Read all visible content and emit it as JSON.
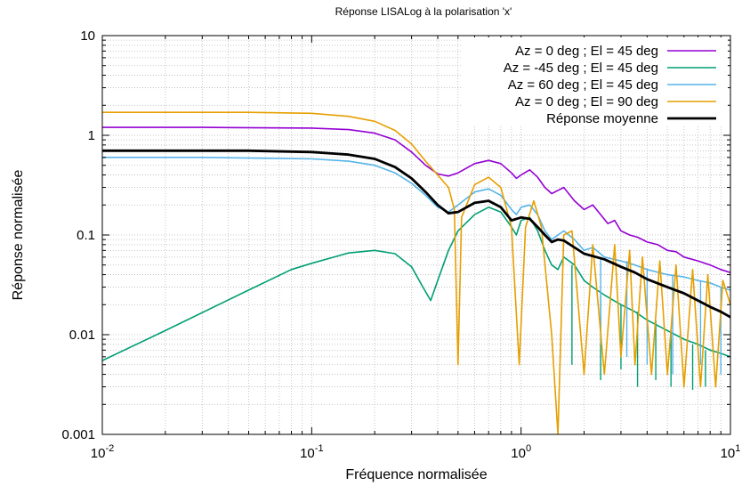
{
  "chart_data": {
    "type": "line",
    "title": "Réponse LISALog à la polarisation 'x'",
    "xlabel": "Fréquence normalisée",
    "ylabel": "Réponse normalisée",
    "xscale": "log",
    "yscale": "log",
    "xlim": [
      0.01,
      10
    ],
    "ylim": [
      0.001,
      10
    ],
    "grid": "on (major and minor, dotted)",
    "legend_position": "top-right",
    "x_ticks": [
      {
        "value": 0.01,
        "base": "10",
        "exp": "-2"
      },
      {
        "value": 0.1,
        "base": "10",
        "exp": "-1"
      },
      {
        "value": 1,
        "base": "10",
        "exp": "0"
      },
      {
        "value": 10,
        "base": "10",
        "exp": "1"
      }
    ],
    "y_ticks": [
      {
        "value": 0.001,
        "label": "0.001"
      },
      {
        "value": 0.01,
        "label": "0.01"
      },
      {
        "value": 0.1,
        "label": "0.1"
      },
      {
        "value": 1,
        "label": "1"
      },
      {
        "value": 10,
        "label": "10"
      }
    ],
    "series": [
      {
        "name": "Az = 0 deg ; El = 45 deg",
        "color": "#9400d3",
        "width": 1.6,
        "points": [
          [
            0.01,
            1.2
          ],
          [
            0.03,
            1.2
          ],
          [
            0.1,
            1.18
          ],
          [
            0.15,
            1.14
          ],
          [
            0.2,
            1.05
          ],
          [
            0.25,
            0.9
          ],
          [
            0.3,
            0.68
          ],
          [
            0.35,
            0.5
          ],
          [
            0.4,
            0.41
          ],
          [
            0.45,
            0.39
          ],
          [
            0.5,
            0.42
          ],
          [
            0.6,
            0.52
          ],
          [
            0.7,
            0.56
          ],
          [
            0.8,
            0.52
          ],
          [
            0.9,
            0.42
          ],
          [
            0.95,
            0.37
          ],
          [
            1.0,
            0.4
          ],
          [
            1.1,
            0.45
          ],
          [
            1.2,
            0.38
          ],
          [
            1.3,
            0.3
          ],
          [
            1.4,
            0.26
          ],
          [
            1.5,
            0.28
          ],
          [
            1.6,
            0.3
          ],
          [
            1.8,
            0.22
          ],
          [
            2.0,
            0.18
          ],
          [
            2.2,
            0.2
          ],
          [
            2.4,
            0.16
          ],
          [
            2.6,
            0.13
          ],
          [
            2.8,
            0.14
          ],
          [
            3.0,
            0.11
          ],
          [
            3.3,
            0.1
          ],
          [
            3.6,
            0.095
          ],
          [
            4.0,
            0.085
          ],
          [
            4.5,
            0.08
          ],
          [
            5.0,
            0.07
          ],
          [
            5.5,
            0.068
          ],
          [
            6.0,
            0.06
          ],
          [
            7.0,
            0.055
          ],
          [
            8.0,
            0.05
          ],
          [
            9.0,
            0.045
          ],
          [
            10,
            0.042
          ]
        ]
      },
      {
        "name": "Az = -45 deg ; El = 45 deg",
        "color": "#009e73",
        "width": 1.6,
        "points": [
          [
            0.01,
            0.0055
          ],
          [
            0.02,
            0.011
          ],
          [
            0.05,
            0.028
          ],
          [
            0.08,
            0.045
          ],
          [
            0.1,
            0.052
          ],
          [
            0.15,
            0.066
          ],
          [
            0.2,
            0.07
          ],
          [
            0.25,
            0.065
          ],
          [
            0.3,
            0.048
          ],
          [
            0.34,
            0.03
          ],
          [
            0.37,
            0.022
          ],
          [
            0.4,
            0.035
          ],
          [
            0.45,
            0.07
          ],
          [
            0.5,
            0.11
          ],
          [
            0.6,
            0.16
          ],
          [
            0.7,
            0.19
          ],
          [
            0.8,
            0.17
          ],
          [
            0.9,
            0.12
          ],
          [
            0.95,
            0.1
          ],
          [
            1.0,
            0.14
          ],
          [
            1.1,
            0.15
          ],
          [
            1.2,
            0.11
          ],
          [
            1.3,
            0.07
          ],
          [
            1.4,
            0.05
          ],
          [
            1.5,
            0.045
          ],
          [
            1.6,
            0.06
          ],
          [
            1.8,
            0.05
          ],
          [
            2.0,
            0.035
          ],
          [
            2.2,
            0.03
          ],
          [
            2.5,
            0.025
          ],
          [
            3.0,
            0.02
          ],
          [
            3.5,
            0.017
          ],
          [
            4.0,
            0.014
          ],
          [
            5.0,
            0.011
          ],
          [
            6.0,
            0.009
          ],
          [
            7.0,
            0.008
          ],
          [
            8.0,
            0.007
          ],
          [
            9.0,
            0.0065
          ],
          [
            10,
            0.006
          ]
        ],
        "dips": [
          [
            1.75,
            0.005
          ],
          [
            2.4,
            0.0035
          ],
          [
            3.0,
            0.0045
          ],
          [
            3.6,
            0.003
          ],
          [
            4.4,
            0.0035
          ],
          [
            5.2,
            0.003
          ],
          [
            6.6,
            0.0028
          ],
          [
            7.6,
            0.003
          ]
        ]
      },
      {
        "name": "Az = 60 deg ; El = 45 deg",
        "color": "#56b4e9",
        "width": 1.6,
        "points": [
          [
            0.01,
            0.6
          ],
          [
            0.03,
            0.6
          ],
          [
            0.1,
            0.58
          ],
          [
            0.15,
            0.55
          ],
          [
            0.2,
            0.5
          ],
          [
            0.25,
            0.42
          ],
          [
            0.3,
            0.33
          ],
          [
            0.35,
            0.25
          ],
          [
            0.4,
            0.19
          ],
          [
            0.45,
            0.17
          ],
          [
            0.5,
            0.2
          ],
          [
            0.6,
            0.27
          ],
          [
            0.7,
            0.29
          ],
          [
            0.8,
            0.25
          ],
          [
            0.9,
            0.18
          ],
          [
            0.95,
            0.16
          ],
          [
            1.0,
            0.19
          ],
          [
            1.1,
            0.2
          ],
          [
            1.2,
            0.16
          ],
          [
            1.3,
            0.11
          ],
          [
            1.4,
            0.09
          ],
          [
            1.5,
            0.1
          ],
          [
            1.6,
            0.11
          ],
          [
            1.8,
            0.09
          ],
          [
            2.0,
            0.07
          ],
          [
            2.2,
            0.075
          ],
          [
            2.5,
            0.06
          ],
          [
            3.0,
            0.055
          ],
          [
            3.5,
            0.05
          ],
          [
            4.0,
            0.045
          ],
          [
            5.0,
            0.04
          ],
          [
            6.0,
            0.038
          ],
          [
            7.0,
            0.035
          ],
          [
            8.0,
            0.033
          ],
          [
            9.0,
            0.03
          ],
          [
            10,
            0.028
          ]
        ],
        "dips": [
          [
            2.4,
            0.008
          ],
          [
            3.2,
            0.006
          ],
          [
            4.0,
            0.005
          ],
          [
            5.3,
            0.004
          ],
          [
            7.2,
            0.005
          ],
          [
            9.0,
            0.004
          ]
        ]
      },
      {
        "name": "Az = 0 deg ; El = 90 deg",
        "color": "#e69f00",
        "width": 1.6,
        "points": [
          [
            0.01,
            1.7
          ],
          [
            0.05,
            1.7
          ],
          [
            0.1,
            1.66
          ],
          [
            0.15,
            1.55
          ],
          [
            0.2,
            1.38
          ],
          [
            0.25,
            1.12
          ],
          [
            0.3,
            0.82
          ],
          [
            0.35,
            0.55
          ],
          [
            0.4,
            0.4
          ],
          [
            0.45,
            0.3
          ],
          [
            0.48,
            0.18
          ],
          [
            0.5,
            0.005
          ],
          [
            0.52,
            0.15
          ],
          [
            0.6,
            0.32
          ],
          [
            0.7,
            0.38
          ],
          [
            0.8,
            0.3
          ],
          [
            0.9,
            0.12
          ],
          [
            0.98,
            0.005
          ],
          [
            1.05,
            0.12
          ],
          [
            1.15,
            0.22
          ],
          [
            1.25,
            0.12
          ],
          [
            1.4,
            0.01
          ],
          [
            1.5,
            0.001
          ],
          [
            1.6,
            0.1
          ],
          [
            1.75,
            0.11
          ],
          [
            2.0,
            0.004
          ],
          [
            2.2,
            0.08
          ],
          [
            2.5,
            0.004
          ],
          [
            2.8,
            0.08
          ],
          [
            3.0,
            0.006
          ],
          [
            3.3,
            0.07
          ],
          [
            3.5,
            0.005
          ],
          [
            3.8,
            0.06
          ],
          [
            4.2,
            0.004
          ],
          [
            4.6,
            0.055
          ],
          [
            5.0,
            0.004
          ],
          [
            5.5,
            0.05
          ],
          [
            6.0,
            0.003
          ],
          [
            6.6,
            0.045
          ],
          [
            7.2,
            0.003
          ],
          [
            7.8,
            0.04
          ],
          [
            8.5,
            0.003
          ],
          [
            9.2,
            0.035
          ],
          [
            10,
            0.02
          ]
        ]
      },
      {
        "name": "Réponse moyenne",
        "color": "#000000",
        "width": 2.8,
        "points": [
          [
            0.01,
            0.7
          ],
          [
            0.05,
            0.7
          ],
          [
            0.1,
            0.68
          ],
          [
            0.15,
            0.64
          ],
          [
            0.2,
            0.58
          ],
          [
            0.25,
            0.48
          ],
          [
            0.3,
            0.37
          ],
          [
            0.35,
            0.27
          ],
          [
            0.4,
            0.2
          ],
          [
            0.45,
            0.165
          ],
          [
            0.5,
            0.17
          ],
          [
            0.6,
            0.21
          ],
          [
            0.7,
            0.22
          ],
          [
            0.8,
            0.19
          ],
          [
            0.9,
            0.14
          ],
          [
            1.0,
            0.15
          ],
          [
            1.1,
            0.145
          ],
          [
            1.2,
            0.12
          ],
          [
            1.3,
            0.1
          ],
          [
            1.4,
            0.085
          ],
          [
            1.5,
            0.09
          ],
          [
            1.6,
            0.088
          ],
          [
            1.8,
            0.075
          ],
          [
            2.0,
            0.065
          ],
          [
            2.5,
            0.057
          ],
          [
            3.0,
            0.048
          ],
          [
            3.5,
            0.042
          ],
          [
            4.0,
            0.036
          ],
          [
            5.0,
            0.03
          ],
          [
            6.0,
            0.026
          ],
          [
            7.0,
            0.022
          ],
          [
            8.0,
            0.019
          ],
          [
            9.0,
            0.017
          ],
          [
            10,
            0.015
          ]
        ]
      }
    ]
  }
}
